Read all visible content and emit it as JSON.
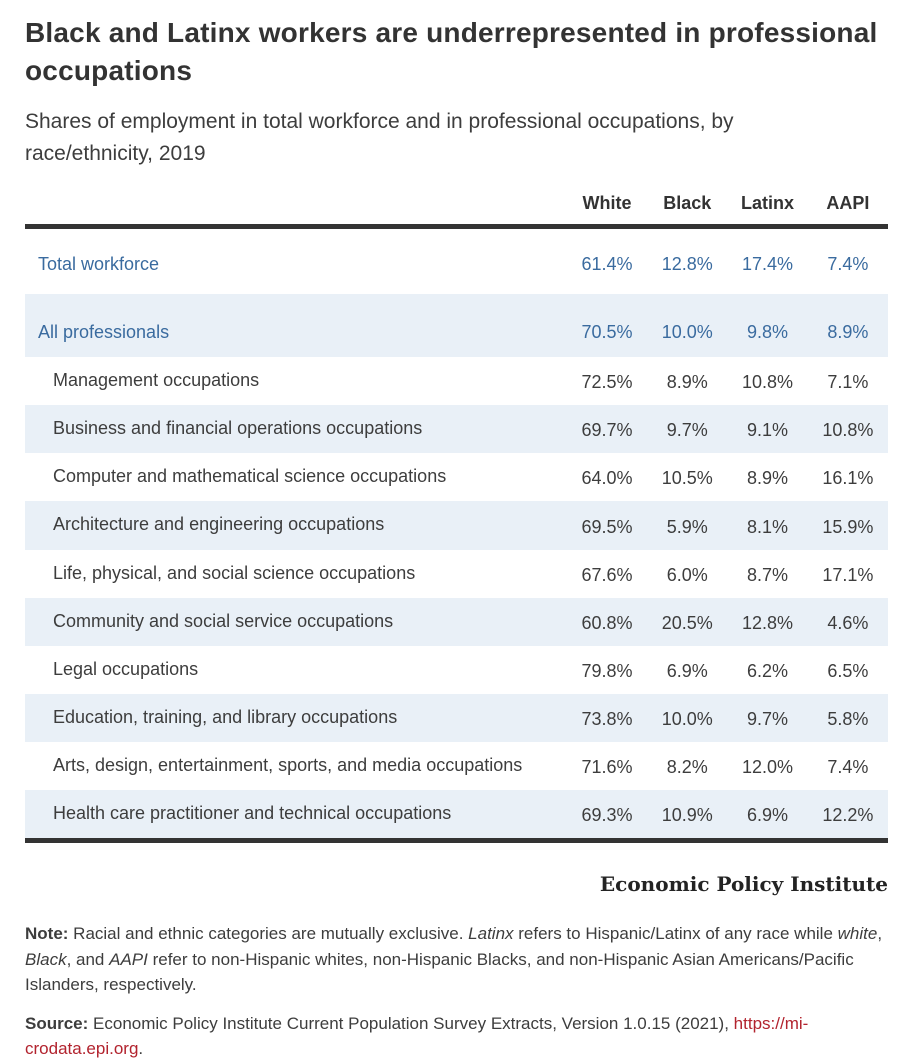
{
  "header": {
    "title": "Black and Latinx workers are underrepresented in professional occupations",
    "subtitle": "Shares of employment in total workforce and in professional occupations, by race/ethnicity, 2019"
  },
  "credit": "Economic Policy Institute",
  "colors": {
    "accent_blue": "#3a6b9f",
    "row_highlight": "#e9f0f7",
    "rule_dark": "#333333",
    "link_red": "#b2232e",
    "text_dark": "#3d3d3d"
  },
  "chart_data": {
    "type": "table",
    "title": "Black and Latinx workers are underrepresented in professional occupations",
    "subtitle": "Shares of employment in total workforce and in professional occupations, by race/ethnicity, 2019",
    "columns": [
      "White",
      "Black",
      "Latinx",
      "AAPI"
    ],
    "rows": [
      {
        "label": "Total workforce",
        "values": [
          "61.4%",
          "12.8%",
          "17.4%",
          "7.4%"
        ],
        "parent": true,
        "highlight": false,
        "kind": "row-total"
      },
      {
        "label": "All professionals",
        "values": [
          "70.5%",
          "10.0%",
          "9.8%",
          "8.9%"
        ],
        "parent": true,
        "highlight": true,
        "kind": "row-allprof"
      },
      {
        "label": "Management occupations",
        "values": [
          "72.5%",
          "8.9%",
          "10.8%",
          "7.1%"
        ],
        "parent": false,
        "highlight": false,
        "kind": ""
      },
      {
        "label": "Business and financial operations occupations",
        "values": [
          "69.7%",
          "9.7%",
          "9.1%",
          "10.8%"
        ],
        "parent": false,
        "highlight": true,
        "kind": ""
      },
      {
        "label": "Computer and mathematical science occupations",
        "values": [
          "64.0%",
          "10.5%",
          "8.9%",
          "16.1%"
        ],
        "parent": false,
        "highlight": false,
        "kind": ""
      },
      {
        "label": "Architecture and engineering occupations",
        "values": [
          "69.5%",
          "5.9%",
          "8.1%",
          "15.9%"
        ],
        "parent": false,
        "highlight": true,
        "kind": ""
      },
      {
        "label": "Life, physical, and social science occupations",
        "values": [
          "67.6%",
          "6.0%",
          "8.7%",
          "17.1%"
        ],
        "parent": false,
        "highlight": false,
        "kind": ""
      },
      {
        "label": "Community and social service occupations",
        "values": [
          "60.8%",
          "20.5%",
          "12.8%",
          "4.6%"
        ],
        "parent": false,
        "highlight": true,
        "kind": ""
      },
      {
        "label": "Legal occupations",
        "values": [
          "79.8%",
          "6.9%",
          "6.2%",
          "6.5%"
        ],
        "parent": false,
        "highlight": false,
        "kind": ""
      },
      {
        "label": "Education, training, and library occupations",
        "values": [
          "73.8%",
          "10.0%",
          "9.7%",
          "5.8%"
        ],
        "parent": false,
        "highlight": true,
        "kind": ""
      },
      {
        "label": "Arts, design, entertainment, sports, and media occupations",
        "values": [
          "71.6%",
          "8.2%",
          "12.0%",
          "7.4%"
        ],
        "parent": false,
        "highlight": false,
        "kind": ""
      },
      {
        "label": "Health care practitioner and technical occupations",
        "values": [
          "69.3%",
          "10.9%",
          "6.9%",
          "12.2%"
        ],
        "parent": false,
        "highlight": true,
        "kind": ""
      }
    ]
  },
  "note_segments": [
    {
      "text": "Note:",
      "bold": true
    },
    {
      "text": " Racial and ethnic categories are mutually exclusive. "
    },
    {
      "text": "Latinx",
      "italic": true
    },
    {
      "text": " refers to Hispanic/Latinx of any race while "
    },
    {
      "text": "white",
      "italic": true
    },
    {
      "text": ", "
    },
    {
      "text": "Black",
      "italic": true
    },
    {
      "text": ", and "
    },
    {
      "text": "AAPI",
      "italic": true
    },
    {
      "text": " refer to non-Hispanic whites, non-Hispanic Blacks, and non-Hispanic Asian Americans/Pacific Islanders, respectively."
    }
  ],
  "source_segments": [
    {
      "text": "Source:",
      "bold": true
    },
    {
      "text": " Economic Policy Institute Current Population Survey Extracts, Version 1.0.15 (2021), "
    },
    {
      "text": "https://mi­crodata.epi.org",
      "link": true
    },
    {
      "text": "."
    }
  ]
}
